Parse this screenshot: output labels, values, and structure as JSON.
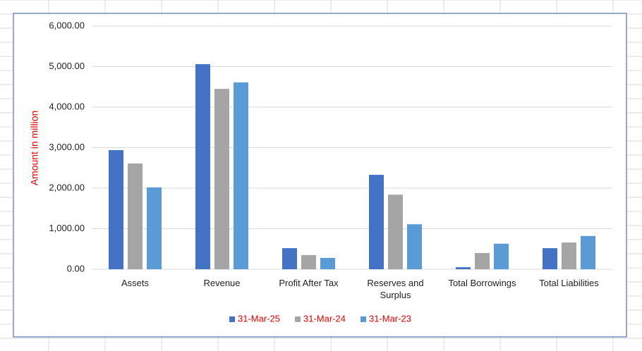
{
  "chart_data": {
    "type": "bar",
    "y_label": "Amount in million",
    "categories": [
      "Assets",
      "Revenue",
      "Profit After Tax",
      "Reserves and Surplus",
      "Total Borrowings",
      "Total Liabilities"
    ],
    "series": [
      {
        "name": "31-Mar-25",
        "color": "#4472c4",
        "values": [
          2940,
          5060,
          520,
          2330,
          50,
          520
        ]
      },
      {
        "name": "31-Mar-24",
        "color": "#a5a5a5",
        "values": [
          2610,
          4450,
          350,
          1840,
          400,
          660
        ]
      },
      {
        "name": "31-Mar-23",
        "color": "#5b9bd5",
        "values": [
          2020,
          4610,
          280,
          1110,
          630,
          820
        ]
      }
    ],
    "ylim": [
      0,
      6000
    ],
    "yticks": [
      {
        "value": 0,
        "label": "0.00"
      },
      {
        "value": 1000,
        "label": "1,000.00"
      },
      {
        "value": 2000,
        "label": "2,000.00"
      },
      {
        "value": 3000,
        "label": "3,000.00"
      },
      {
        "value": 4000,
        "label": "4,000.00"
      },
      {
        "value": 5000,
        "label": "5,000.00"
      },
      {
        "value": 6000,
        "label": "6,000.00"
      }
    ],
    "grid": true,
    "legend": "bottom"
  }
}
